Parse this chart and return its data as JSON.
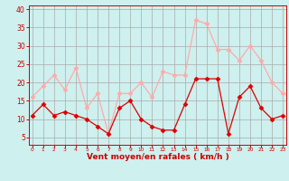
{
  "x": [
    0,
    1,
    2,
    3,
    4,
    5,
    6,
    7,
    8,
    9,
    10,
    11,
    12,
    13,
    14,
    15,
    16,
    17,
    18,
    19,
    20,
    21,
    22,
    23
  ],
  "mean_wind": [
    11,
    14,
    11,
    12,
    11,
    10,
    8,
    6,
    13,
    15,
    10,
    8,
    7,
    7,
    14,
    21,
    21,
    21,
    6,
    16,
    19,
    13,
    10,
    11
  ],
  "gust_wind": [
    16,
    19,
    22,
    18,
    24,
    13,
    17,
    6,
    17,
    17,
    20,
    16,
    23,
    22,
    22,
    37,
    36,
    29,
    29,
    26,
    30,
    26,
    20,
    17
  ],
  "mean_color": "#dd0000",
  "gust_color": "#ffaaaa",
  "background_color": "#cef0ee",
  "grid_color": "#aaaaaa",
  "xlabel": "Vent moyen/en rafales ( km/h )",
  "xlabel_color": "#cc0000",
  "ylabel_values": [
    5,
    10,
    15,
    20,
    25,
    30,
    35,
    40
  ],
  "ylim": [
    3,
    41
  ],
  "xlim": [
    -0.3,
    23.3
  ],
  "tick_color": "#cc0000",
  "axis_color": "#cc0000"
}
